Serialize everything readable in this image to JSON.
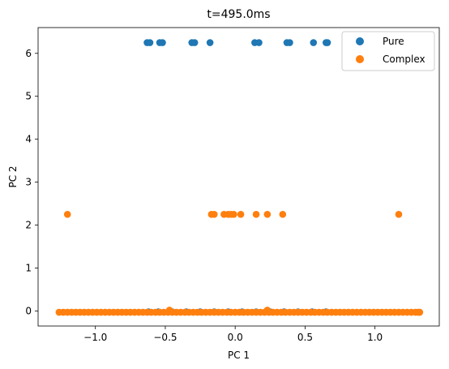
{
  "chart_data": {
    "type": "scatter",
    "title": "t=495.0ms",
    "xlabel": "PC 1",
    "ylabel": "PC 2",
    "xlim": [
      -1.41,
      1.46
    ],
    "ylim": [
      -0.35,
      6.6
    ],
    "xticks": [
      -1.0,
      -0.5,
      0.0,
      0.5,
      1.0
    ],
    "xtick_labels": [
      "−1.0",
      "−0.5",
      "0.0",
      "0.5",
      "1.0"
    ],
    "yticks": [
      0,
      1,
      2,
      3,
      4,
      5,
      6
    ],
    "ytick_labels": [
      "0",
      "1",
      "2",
      "3",
      "4",
      "5",
      "6"
    ],
    "grid": false,
    "legend_position": "top-right",
    "series": [
      {
        "name": "Pure",
        "color": "#1f77b4",
        "points": [
          [
            -0.63,
            6.25
          ],
          [
            -0.61,
            6.25
          ],
          [
            -0.54,
            6.25
          ],
          [
            -0.52,
            6.25
          ],
          [
            -0.31,
            6.25
          ],
          [
            -0.29,
            6.25
          ],
          [
            -0.18,
            6.25
          ],
          [
            0.14,
            6.25
          ],
          [
            0.17,
            6.25
          ],
          [
            0.37,
            6.25
          ],
          [
            0.39,
            6.25
          ],
          [
            0.56,
            6.25
          ],
          [
            0.65,
            6.25
          ],
          [
            0.66,
            6.25
          ],
          [
            -0.62,
            -0.02
          ],
          [
            -0.55,
            -0.02
          ],
          [
            -0.45,
            -0.02
          ],
          [
            -0.35,
            -0.02
          ],
          [
            -0.25,
            -0.02
          ],
          [
            -0.15,
            -0.02
          ],
          [
            -0.05,
            -0.02
          ],
          [
            0.05,
            -0.02
          ],
          [
            0.15,
            -0.02
          ],
          [
            0.25,
            -0.02
          ],
          [
            0.35,
            -0.02
          ],
          [
            0.45,
            -0.02
          ],
          [
            0.55,
            -0.02
          ],
          [
            0.65,
            -0.02
          ]
        ]
      },
      {
        "name": "Complex",
        "color": "#ff7f0e",
        "points": [
          [
            -1.2,
            2.25
          ],
          [
            -0.17,
            2.25
          ],
          [
            -0.15,
            2.25
          ],
          [
            -0.08,
            2.25
          ],
          [
            -0.05,
            2.25
          ],
          [
            -0.03,
            2.25
          ],
          [
            -0.01,
            2.25
          ],
          [
            0.04,
            2.25
          ],
          [
            0.15,
            2.25
          ],
          [
            0.23,
            2.25
          ],
          [
            0.34,
            2.25
          ],
          [
            1.17,
            2.25
          ],
          [
            -0.47,
            0.02
          ],
          [
            0.23,
            0.02
          ],
          [
            -1.26,
            -0.03
          ],
          [
            -1.23,
            -0.03
          ],
          [
            -1.2,
            -0.03
          ],
          [
            -1.17,
            -0.03
          ],
          [
            -1.14,
            -0.03
          ],
          [
            -1.11,
            -0.03
          ],
          [
            -1.08,
            -0.03
          ],
          [
            -1.05,
            -0.03
          ],
          [
            -1.02,
            -0.03
          ],
          [
            -0.99,
            -0.03
          ],
          [
            -0.96,
            -0.03
          ],
          [
            -0.93,
            -0.03
          ],
          [
            -0.9,
            -0.03
          ],
          [
            -0.87,
            -0.03
          ],
          [
            -0.84,
            -0.03
          ],
          [
            -0.81,
            -0.03
          ],
          [
            -0.78,
            -0.03
          ],
          [
            -0.75,
            -0.03
          ],
          [
            -0.72,
            -0.03
          ],
          [
            -0.69,
            -0.03
          ],
          [
            -0.66,
            -0.03
          ],
          [
            -0.63,
            -0.03
          ],
          [
            -0.6,
            -0.03
          ],
          [
            -0.57,
            -0.03
          ],
          [
            -0.54,
            -0.03
          ],
          [
            -0.51,
            -0.03
          ],
          [
            -0.48,
            -0.03
          ],
          [
            -0.45,
            -0.03
          ],
          [
            -0.42,
            -0.03
          ],
          [
            -0.39,
            -0.03
          ],
          [
            -0.36,
            -0.03
          ],
          [
            -0.33,
            -0.03
          ],
          [
            -0.3,
            -0.03
          ],
          [
            -0.27,
            -0.03
          ],
          [
            -0.24,
            -0.03
          ],
          [
            -0.21,
            -0.03
          ],
          [
            -0.18,
            -0.03
          ],
          [
            -0.15,
            -0.03
          ],
          [
            -0.12,
            -0.03
          ],
          [
            -0.09,
            -0.03
          ],
          [
            -0.06,
            -0.03
          ],
          [
            -0.03,
            -0.03
          ],
          [
            0.0,
            -0.03
          ],
          [
            0.03,
            -0.03
          ],
          [
            0.06,
            -0.03
          ],
          [
            0.09,
            -0.03
          ],
          [
            0.12,
            -0.03
          ],
          [
            0.15,
            -0.03
          ],
          [
            0.18,
            -0.03
          ],
          [
            0.21,
            -0.03
          ],
          [
            0.24,
            -0.03
          ],
          [
            0.27,
            -0.03
          ],
          [
            0.3,
            -0.03
          ],
          [
            0.33,
            -0.03
          ],
          [
            0.36,
            -0.03
          ],
          [
            0.39,
            -0.03
          ],
          [
            0.42,
            -0.03
          ],
          [
            0.45,
            -0.03
          ],
          [
            0.48,
            -0.03
          ],
          [
            0.51,
            -0.03
          ],
          [
            0.54,
            -0.03
          ],
          [
            0.57,
            -0.03
          ],
          [
            0.6,
            -0.03
          ],
          [
            0.63,
            -0.03
          ],
          [
            0.66,
            -0.03
          ],
          [
            0.69,
            -0.03
          ],
          [
            0.72,
            -0.03
          ],
          [
            0.75,
            -0.03
          ],
          [
            0.78,
            -0.03
          ],
          [
            0.81,
            -0.03
          ],
          [
            0.84,
            -0.03
          ],
          [
            0.87,
            -0.03
          ],
          [
            0.9,
            -0.03
          ],
          [
            0.93,
            -0.03
          ],
          [
            0.96,
            -0.03
          ],
          [
            0.99,
            -0.03
          ],
          [
            1.02,
            -0.03
          ],
          [
            1.05,
            -0.03
          ],
          [
            1.08,
            -0.03
          ],
          [
            1.11,
            -0.03
          ],
          [
            1.14,
            -0.03
          ],
          [
            1.17,
            -0.03
          ],
          [
            1.2,
            -0.03
          ],
          [
            1.23,
            -0.03
          ],
          [
            1.26,
            -0.03
          ],
          [
            1.29,
            -0.03
          ],
          [
            1.31,
            -0.03
          ],
          [
            1.32,
            -0.03
          ]
        ]
      }
    ]
  }
}
